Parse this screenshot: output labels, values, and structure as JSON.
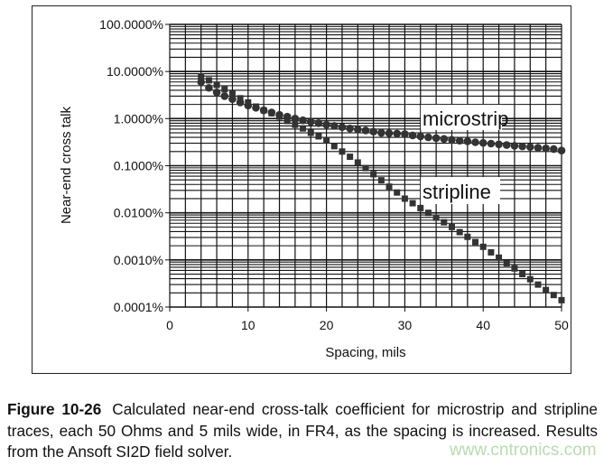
{
  "chart_data": {
    "type": "scatter",
    "title": "",
    "xlabel": "Spacing, mils",
    "ylabel": "Near-end cross talk",
    "xlim": [
      0,
      50
    ],
    "ylim": [
      0.0001,
      100
    ],
    "yscale": "log",
    "grid": true,
    "x_ticks": [
      "0",
      "10",
      "20",
      "30",
      "40",
      "50"
    ],
    "y_ticks": [
      "0.0001%",
      "0.0010%",
      "0.0100%",
      "0.1000%",
      "1.0000%",
      "10.0000%",
      "100.0000%"
    ],
    "x": [
      4,
      5,
      6,
      7,
      8,
      9,
      10,
      11,
      12,
      13,
      14,
      15,
      16,
      17,
      18,
      19,
      20,
      21,
      22,
      23,
      24,
      25,
      26,
      27,
      28,
      29,
      30,
      31,
      32,
      33,
      34,
      35,
      36,
      37,
      38,
      39,
      40,
      41,
      42,
      43,
      44,
      45,
      46,
      47,
      48,
      49,
      50
    ],
    "series": [
      {
        "name": "microstrip",
        "marker": "circle",
        "color": "#333333",
        "values": [
          6.0,
          4.5,
          3.6,
          3.0,
          2.6,
          2.2,
          1.9,
          1.7,
          1.5,
          1.35,
          1.2,
          1.1,
          1.0,
          0.92,
          0.85,
          0.8,
          0.74,
          0.7,
          0.66,
          0.62,
          0.59,
          0.56,
          0.53,
          0.5,
          0.49,
          0.48,
          0.47,
          0.44,
          0.42,
          0.4,
          0.385,
          0.37,
          0.355,
          0.34,
          0.33,
          0.315,
          0.305,
          0.295,
          0.285,
          0.275,
          0.265,
          0.257,
          0.25,
          0.24,
          0.233,
          0.226,
          0.21
        ]
      },
      {
        "name": "stripline",
        "marker": "square",
        "color": "#333333",
        "values": [
          7.9,
          6.5,
          5.2,
          4.2,
          3.4,
          2.7,
          2.2,
          1.8,
          1.5,
          1.3,
          1.1,
          0.89,
          0.74,
          0.62,
          0.5,
          0.42,
          0.35,
          0.26,
          0.2,
          0.155,
          0.117,
          0.089,
          0.066,
          0.049,
          0.036,
          0.027,
          0.02,
          0.016,
          0.0126,
          0.01,
          0.0079,
          0.0063,
          0.005,
          0.0039,
          0.0031,
          0.0024,
          0.0019,
          0.00145,
          0.00112,
          0.00085,
          0.00066,
          0.0005,
          0.00039,
          0.0003,
          0.00023,
          0.00018,
          0.00014
        ]
      }
    ],
    "annotations": [
      "microstrip",
      "stripline"
    ]
  },
  "caption": {
    "label": "Figure 10-26",
    "text": "Calculated near-end cross-talk coefficient for microstrip and stripline traces, each 50 Ohms and 5 mils wide, in FR4, as the spacing is increased. Results from the Ansoft SI2D field solver."
  },
  "watermark": "www.cntronics.com"
}
